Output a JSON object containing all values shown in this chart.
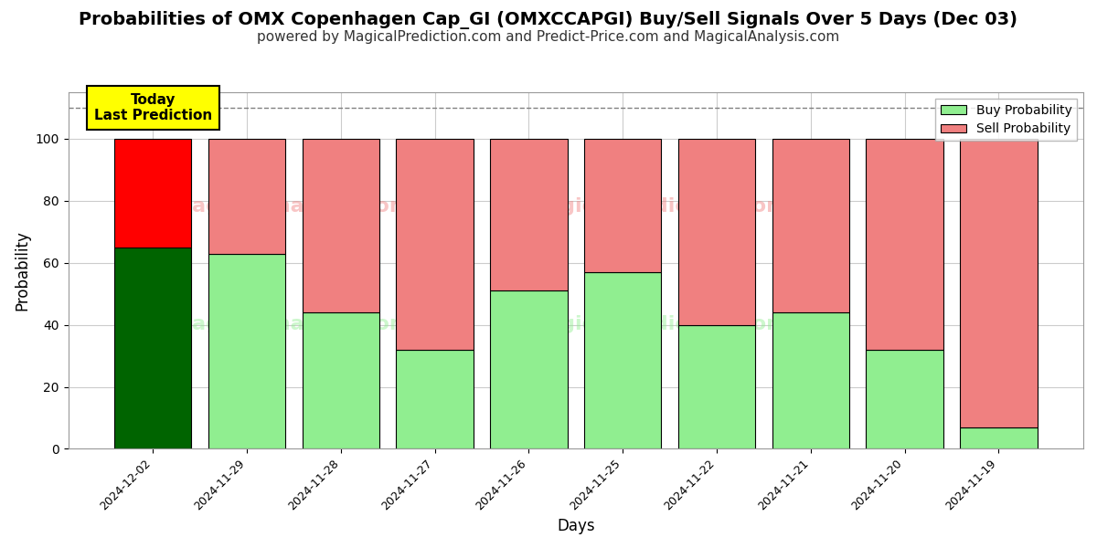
{
  "title": "Probabilities of OMX Copenhagen Cap_GI (OMXCCAPGI) Buy/Sell Signals Over 5 Days (Dec 03)",
  "subtitle": "powered by MagicalPrediction.com and Predict-Price.com and MagicalAnalysis.com",
  "xlabel": "Days",
  "ylabel": "Probability",
  "categories": [
    "2024-12-02",
    "2024-11-29",
    "2024-11-28",
    "2024-11-27",
    "2024-11-26",
    "2024-11-25",
    "2024-11-22",
    "2024-11-21",
    "2024-11-20",
    "2024-11-19"
  ],
  "buy_values": [
    65,
    63,
    44,
    32,
    51,
    57,
    40,
    44,
    32,
    7
  ],
  "sell_values": [
    35,
    37,
    56,
    68,
    49,
    43,
    60,
    56,
    68,
    93
  ],
  "buy_colors": [
    "#006400",
    "#90EE90",
    "#90EE90",
    "#90EE90",
    "#90EE90",
    "#90EE90",
    "#90EE90",
    "#90EE90",
    "#90EE90",
    "#90EE90"
  ],
  "sell_colors": [
    "#FF0000",
    "#F08080",
    "#F08080",
    "#F08080",
    "#F08080",
    "#F08080",
    "#F08080",
    "#F08080",
    "#F08080",
    "#F08080"
  ],
  "today_label": "Today\nLast Prediction",
  "today_bg_color": "#FFFF00",
  "legend_buy_color": "#90EE90",
  "legend_sell_color": "#F08080",
  "legend_buy_label": "Buy Probability",
  "legend_sell_label": "Sell Probability",
  "ylim_max": 115,
  "yticks": [
    0,
    20,
    40,
    60,
    80,
    100
  ],
  "dashed_line_y": 110,
  "background_color": "#ffffff",
  "grid_color": "#cccccc",
  "title_fontsize": 14,
  "subtitle_fontsize": 11,
  "axis_label_fontsize": 12,
  "bar_edgecolor": "#000000",
  "bar_linewidth": 0.8,
  "bar_width": 0.82
}
